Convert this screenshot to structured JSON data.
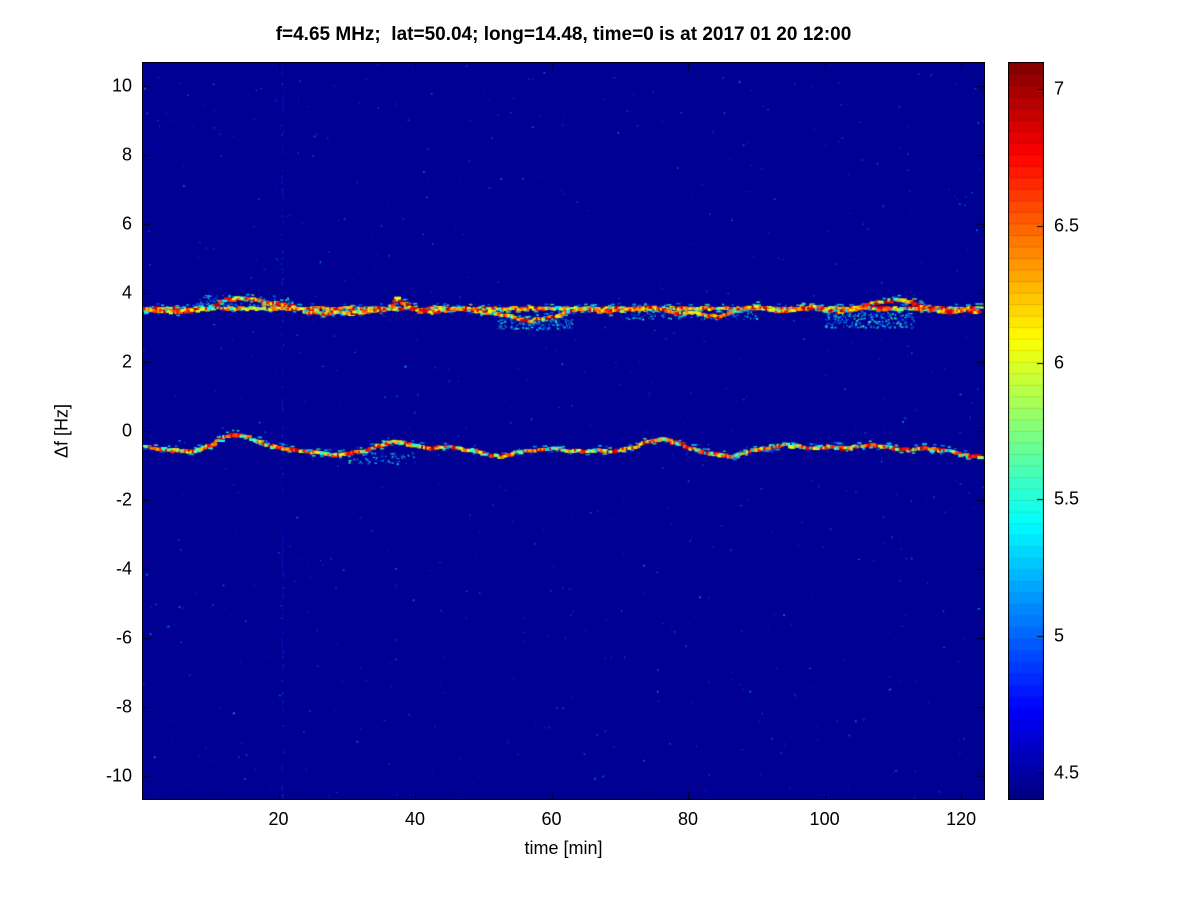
{
  "chart_data": {
    "type": "heatmap",
    "title": "f=4.65 MHz;  lat=50.04; long=14.48, time=0 is at 2017 01 20 12:00",
    "xlabel": "time [min]",
    "ylabel": "Δf [Hz]",
    "xlim": [
      0,
      123.5
    ],
    "ylim": [
      -10.7,
      10.7
    ],
    "x_ticks": [
      20,
      40,
      60,
      80,
      100,
      120
    ],
    "y_ticks": [
      10,
      8,
      6,
      4,
      2,
      0,
      -2,
      -4,
      -6,
      -8,
      -10
    ],
    "grid": false,
    "legend": "none",
    "colorbar": {
      "position": "right",
      "ticks": [
        4.5,
        5,
        5.5,
        6,
        6.5,
        7
      ],
      "range": [
        4.4,
        7.1
      ],
      "colormap": "jet",
      "levels": 64
    },
    "background_value": 4.45,
    "background_color": "#000092",
    "noise": {
      "count": 2600,
      "v_min": 4.5,
      "v_max": 5.4
    },
    "vertical_streaks": [
      {
        "x": 20.5,
        "value": 4.75
      }
    ],
    "series": [
      {
        "name": "upper-carrier-line",
        "description": "constant spectral line near +3.55 Hz",
        "x": [
          0,
          122.5
        ],
        "y": [
          3.55,
          3.55
        ],
        "v_high": [
          6.2,
          7.0
        ],
        "v_mid": [
          5.7,
          6.2
        ],
        "p_high": 0.6,
        "seed": 11
      },
      {
        "name": "upper-doppler-trace",
        "description": "wavy Doppler trace around +3.5 Hz",
        "x": [
          0,
          4,
          8,
          10,
          12,
          14,
          16,
          18,
          20,
          22,
          24,
          26,
          28,
          30,
          32,
          34,
          36,
          37,
          38,
          40,
          42,
          44,
          46,
          48,
          50,
          52,
          54,
          56,
          58,
          60,
          62,
          64,
          66,
          68,
          70,
          72,
          74,
          76,
          78,
          80,
          82,
          84,
          86,
          88,
          90,
          92,
          94,
          96,
          98,
          100,
          102,
          104,
          106,
          108,
          110,
          112,
          114,
          116,
          118,
          120,
          122.5
        ],
        "y": [
          3.5,
          3.45,
          3.5,
          3.6,
          3.8,
          3.85,
          3.8,
          3.72,
          3.68,
          3.6,
          3.45,
          3.4,
          3.45,
          3.4,
          3.45,
          3.5,
          3.55,
          3.85,
          3.7,
          3.5,
          3.45,
          3.5,
          3.55,
          3.5,
          3.45,
          3.4,
          3.3,
          3.2,
          3.25,
          3.3,
          3.45,
          3.55,
          3.5,
          3.45,
          3.5,
          3.55,
          3.6,
          3.5,
          3.4,
          3.45,
          3.35,
          3.3,
          3.45,
          3.55,
          3.6,
          3.5,
          3.45,
          3.55,
          3.6,
          3.5,
          3.45,
          3.55,
          3.65,
          3.75,
          3.8,
          3.75,
          3.6,
          3.5,
          3.45,
          3.5,
          3.45
        ],
        "v_high": [
          6.3,
          7.05
        ],
        "v_mid": [
          5.8,
          6.3
        ],
        "p_high": 0.6,
        "seed": 12
      },
      {
        "name": "lower-doppler-trace",
        "description": "wavy Doppler trace around -0.5 Hz",
        "x": [
          0,
          2,
          4,
          6,
          8,
          10,
          12,
          14,
          16,
          18,
          20,
          22,
          24,
          26,
          28,
          30,
          32,
          34,
          36,
          38,
          40,
          42,
          44,
          46,
          48,
          50,
          52,
          54,
          56,
          58,
          60,
          62,
          64,
          66,
          68,
          70,
          72,
          74,
          76,
          78,
          80,
          82,
          84,
          86,
          88,
          90,
          92,
          94,
          96,
          98,
          100,
          102,
          104,
          106,
          108,
          110,
          112,
          114,
          116,
          118,
          120,
          122.5
        ],
        "y": [
          -0.45,
          -0.5,
          -0.55,
          -0.6,
          -0.55,
          -0.4,
          -0.15,
          -0.1,
          -0.25,
          -0.4,
          -0.5,
          -0.55,
          -0.6,
          -0.65,
          -0.7,
          -0.65,
          -0.6,
          -0.45,
          -0.3,
          -0.35,
          -0.45,
          -0.5,
          -0.45,
          -0.5,
          -0.55,
          -0.65,
          -0.75,
          -0.65,
          -0.6,
          -0.55,
          -0.5,
          -0.55,
          -0.6,
          -0.55,
          -0.6,
          -0.55,
          -0.45,
          -0.3,
          -0.25,
          -0.35,
          -0.5,
          -0.6,
          -0.7,
          -0.75,
          -0.65,
          -0.55,
          -0.45,
          -0.4,
          -0.45,
          -0.5,
          -0.45,
          -0.5,
          -0.45,
          -0.4,
          -0.45,
          -0.5,
          -0.55,
          -0.5,
          -0.55,
          -0.6,
          -0.7,
          -0.75
        ],
        "v_high": [
          6.2,
          7.0
        ],
        "v_mid": [
          5.5,
          6.2
        ],
        "p_high": 0.55,
        "seed": 13
      }
    ],
    "fuzz_regions": [
      {
        "x0": 52,
        "x1": 63,
        "y0": 2.95,
        "y1": 3.3,
        "count": 160,
        "seed": 21
      },
      {
        "x0": 100,
        "x1": 113,
        "y0": 3.0,
        "y1": 3.45,
        "count": 240,
        "seed": 22
      },
      {
        "x0": 8,
        "x1": 22,
        "y0": 3.6,
        "y1": 3.95,
        "count": 90,
        "seed": 23
      },
      {
        "x0": 30,
        "x1": 40,
        "y0": -0.95,
        "y1": -0.6,
        "count": 70,
        "seed": 24
      },
      {
        "x0": 70,
        "x1": 90,
        "y0": 3.25,
        "y1": 3.6,
        "count": 130,
        "seed": 25
      }
    ]
  }
}
